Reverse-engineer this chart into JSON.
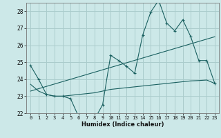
{
  "xlabel": "Humidex (Indice chaleur)",
  "background_color": "#cce8e8",
  "grid_color": "#aacccc",
  "line_color": "#1a6060",
  "x_values": [
    0,
    1,
    2,
    3,
    4,
    5,
    6,
    7,
    8,
    9,
    10,
    11,
    12,
    13,
    14,
    15,
    16,
    17,
    18,
    19,
    20,
    21,
    22,
    23
  ],
  "series1": [
    24.8,
    24.0,
    23.1,
    23.0,
    23.0,
    22.85,
    21.8,
    21.75,
    21.65,
    22.5,
    25.4,
    25.1,
    24.75,
    24.35,
    26.6,
    27.95,
    28.65,
    27.3,
    26.85,
    27.5,
    26.5,
    25.1,
    25.1,
    23.75
  ],
  "series2": [
    23.7,
    23.3,
    23.1,
    23.0,
    23.0,
    23.05,
    23.1,
    23.15,
    23.2,
    23.3,
    23.4,
    23.45,
    23.5,
    23.55,
    23.6,
    23.65,
    23.7,
    23.75,
    23.8,
    23.85,
    23.9,
    23.92,
    23.95,
    23.75
  ],
  "series3_x": [
    0,
    23
  ],
  "series3_y": [
    23.3,
    26.5
  ],
  "ylim": [
    22,
    28.5
  ],
  "xlim": [
    -0.5,
    23.5
  ],
  "yticks": [
    22,
    23,
    24,
    25,
    26,
    27,
    28
  ],
  "xticks": [
    0,
    1,
    2,
    3,
    4,
    5,
    6,
    7,
    8,
    9,
    10,
    11,
    12,
    13,
    14,
    15,
    16,
    17,
    18,
    19,
    20,
    21,
    22,
    23
  ]
}
